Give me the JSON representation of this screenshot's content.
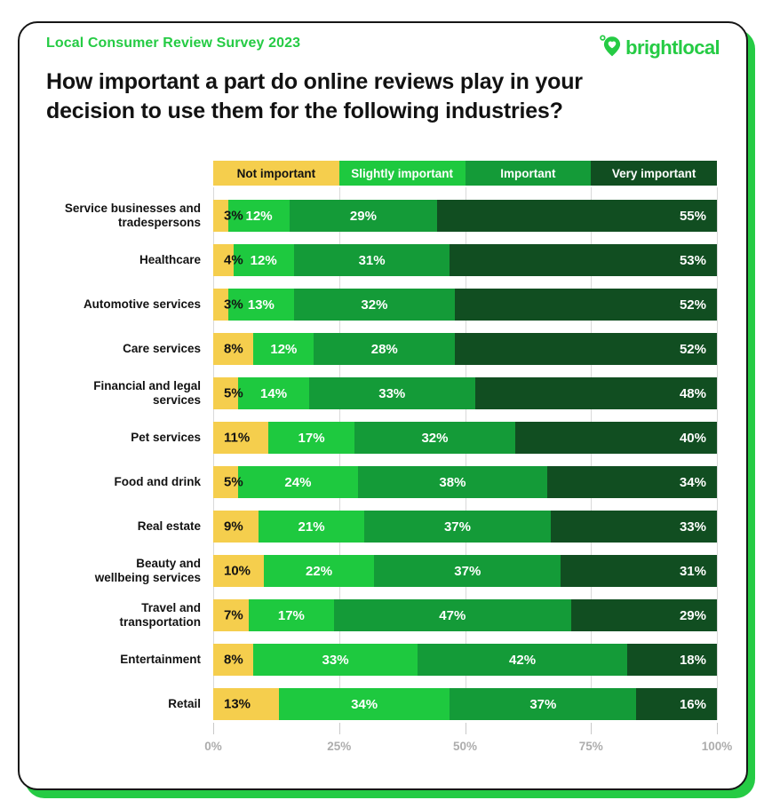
{
  "header": {
    "survey_label": "Local Consumer Review Survey 2023",
    "title": "How important a part do online reviews play in your decision to use them for the following industries?",
    "brand": "brightlocal"
  },
  "colors": {
    "brand_green": "#25cb44",
    "not_important": "#f5ce4d",
    "slightly_important": "#1ec93f",
    "important": "#149b38",
    "very_important": "#114e21",
    "card_border": "#161616",
    "shadow_green": "#25cb44",
    "gridline": "#d9d9d9",
    "axis_text": "#adadad",
    "label_dark": "#121212",
    "label_light": "#ffffff"
  },
  "chart_data": {
    "type": "bar",
    "orientation": "horizontal",
    "stacked": true,
    "title": "How important a part do online reviews play in your decision to use them for the following industries?",
    "legend_position": "top",
    "grid": true,
    "xlim": [
      0,
      100
    ],
    "x_ticks": [
      "0%",
      "25%",
      "50%",
      "75%",
      "100%"
    ],
    "value_suffix": "%",
    "categories": [
      "Service businesses and\ntradespersons",
      "Healthcare",
      "Automotive services",
      "Care services",
      "Financial and legal\nservices",
      "Pet services",
      "Food and drink",
      "Real estate",
      "Beauty and\nwellbeing services",
      "Travel and\ntransportation",
      "Entertainment",
      "Retail"
    ],
    "series": [
      {
        "name": "Not important",
        "color": "#f5ce4d",
        "values": [
          3,
          4,
          3,
          8,
          5,
          11,
          5,
          9,
          10,
          7,
          8,
          13
        ]
      },
      {
        "name": "Slightly important",
        "color": "#1ec93f",
        "values": [
          12,
          12,
          13,
          12,
          14,
          17,
          24,
          21,
          22,
          17,
          33,
          34
        ]
      },
      {
        "name": "Important",
        "color": "#149b38",
        "values": [
          29,
          31,
          32,
          28,
          33,
          32,
          38,
          37,
          37,
          47,
          42,
          37
        ]
      },
      {
        "name": "Very important",
        "color": "#114e21",
        "values": [
          55,
          53,
          52,
          52,
          48,
          40,
          34,
          33,
          31,
          29,
          18,
          16
        ]
      }
    ]
  }
}
